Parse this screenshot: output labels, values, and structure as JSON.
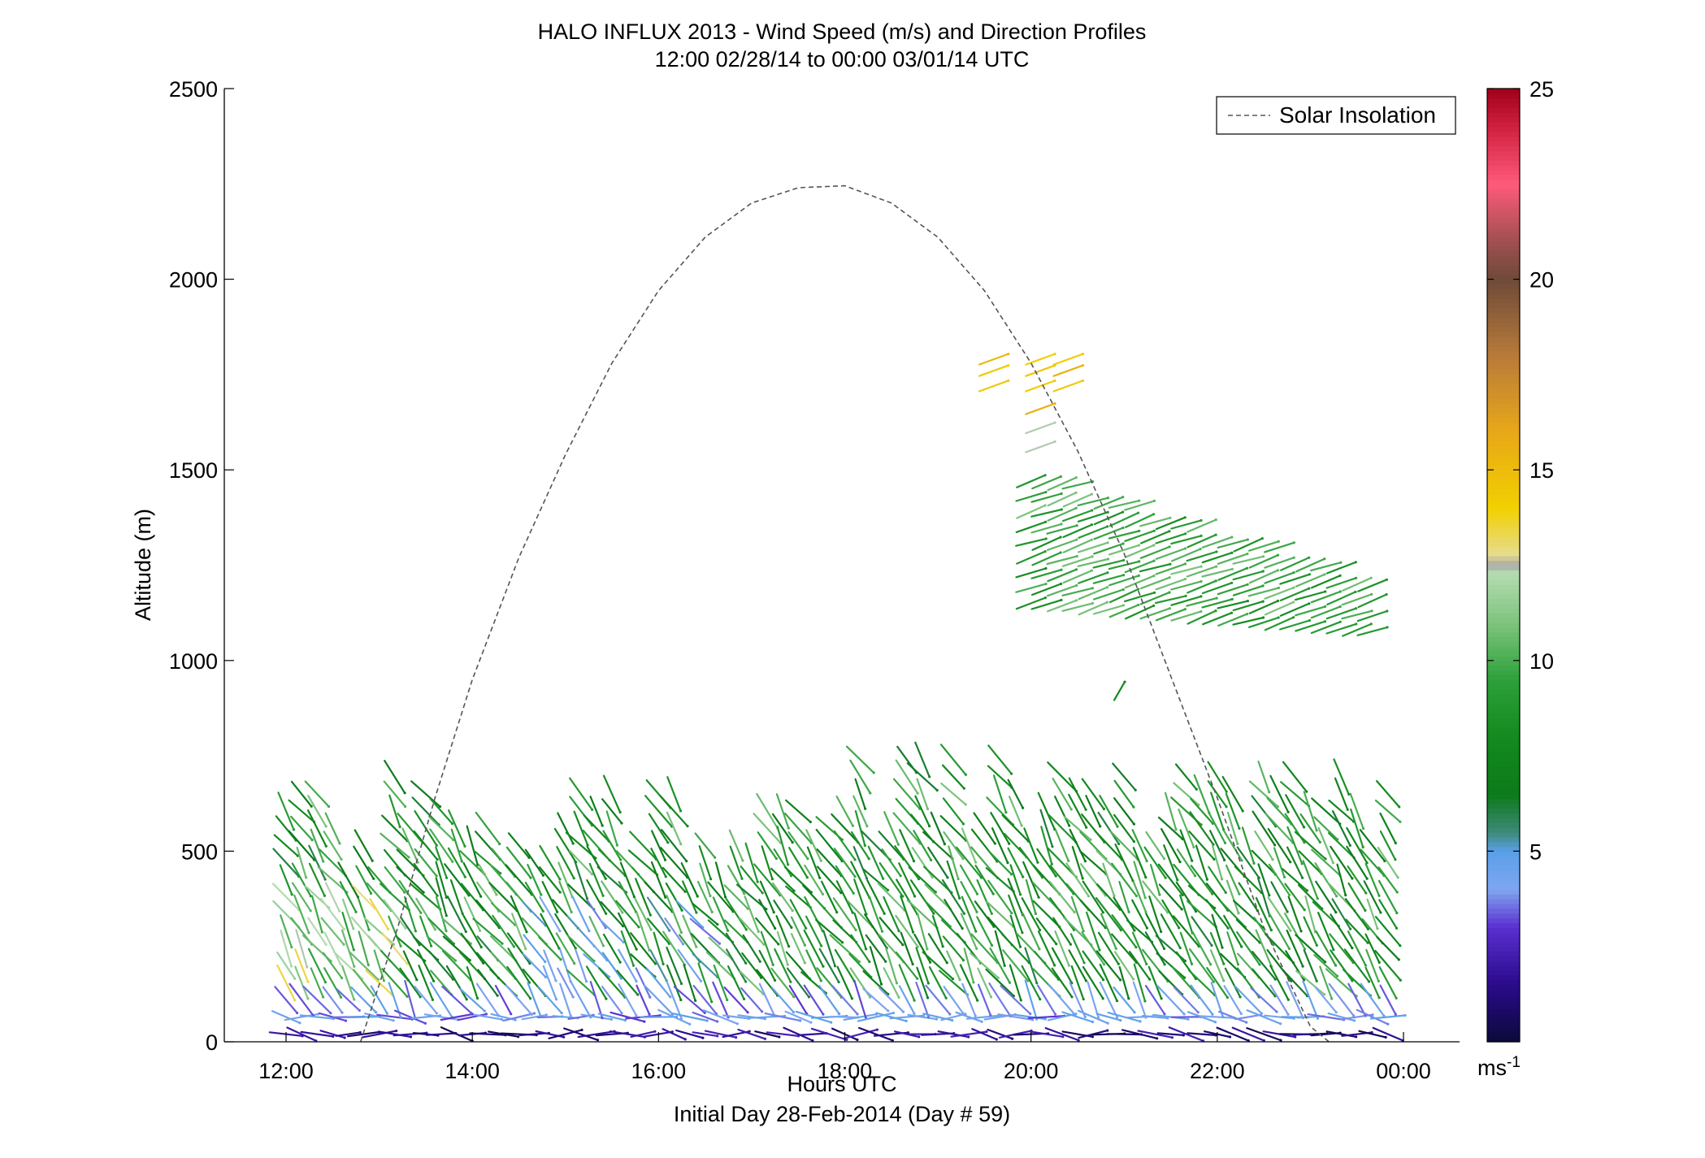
{
  "chart_data": {
    "type": "wind-profile",
    "title": "HALO INFLUX 2013 - Wind Speed (m/s) and Direction Profiles",
    "subtitle": "12:00 02/28/14 to 00:00 03/01/14  UTC",
    "xlabel": "Hours UTC",
    "xlabel2": "Initial Day 28-Feb-2014 (Day # 59)",
    "ylabel": "Altitude (m)",
    "xlim": [
      12,
      24
    ],
    "ylim": [
      0,
      2500
    ],
    "x_ticks": [
      12,
      14,
      16,
      18,
      20,
      22,
      24
    ],
    "x_tick_labels": [
      "12:00",
      "14:00",
      "16:00",
      "18:00",
      "20:00",
      "22:00",
      "00:00"
    ],
    "y_ticks": [
      0,
      500,
      1000,
      1500,
      2000,
      2500
    ],
    "y_tick_labels": [
      "0",
      "500",
      "1000",
      "1500",
      "2000",
      "2500"
    ],
    "legend": {
      "position": "top-right",
      "entries": [
        "Solar Insolation"
      ]
    },
    "colorbar": {
      "label": "ms-1",
      "unit_base": "ms",
      "unit_exp": "-1",
      "range": [
        0,
        25
      ],
      "ticks": [
        5,
        10,
        15,
        20,
        25
      ],
      "tick_labels": [
        "5",
        "10",
        "15",
        "20",
        "25"
      ],
      "stops": [
        [
          0,
          "#0a0a3a"
        ],
        [
          1.5,
          "#2a0a8a"
        ],
        [
          3,
          "#5a2fd0"
        ],
        [
          4,
          "#7fa6f0"
        ],
        [
          5,
          "#5aa0e8"
        ],
        [
          5.5,
          "#3d8a78"
        ],
        [
          6.5,
          "#0c7a1a"
        ],
        [
          8,
          "#138a1e"
        ],
        [
          9.5,
          "#2ea03a"
        ],
        [
          11,
          "#7ec47e"
        ],
        [
          12.3,
          "#b4dcb0"
        ],
        [
          12.5,
          "#a8a8a8"
        ],
        [
          12.8,
          "#e6dc8c"
        ],
        [
          14,
          "#f2d000"
        ],
        [
          16,
          "#e8a818"
        ],
        [
          18,
          "#b87a3a"
        ],
        [
          20,
          "#6e4a38"
        ],
        [
          21,
          "#a05050"
        ],
        [
          22.5,
          "#ff5a7a"
        ],
        [
          24,
          "#d02040"
        ],
        [
          25,
          "#a0001a"
        ]
      ]
    },
    "solar_insolation": {
      "name": "Solar Insolation",
      "x": [
        12.8,
        13.2,
        13.6,
        14.0,
        14.5,
        15.0,
        15.5,
        16.0,
        16.5,
        17.0,
        17.5,
        18.0,
        18.5,
        19.0,
        19.5,
        20.0,
        20.5,
        21.0,
        21.5,
        22.0,
        22.5,
        23.0,
        23.2
      ],
      "y": [
        0,
        300,
        640,
        950,
        1270,
        1540,
        1780,
        1970,
        2110,
        2200,
        2240,
        2245,
        2200,
        2110,
        1970,
        1780,
        1550,
        1280,
        960,
        640,
        300,
        40,
        0
      ]
    },
    "barb_speed_ranges": [
      {
        "from": 0,
        "to": 60,
        "speed": [
          0.5,
          2.5
        ]
      },
      {
        "from": 60,
        "to": 130,
        "speed": [
          3,
          5
        ]
      },
      {
        "from": 130,
        "to": 780,
        "speed": [
          6,
          11
        ]
      },
      {
        "from": 1100,
        "to": 1500,
        "speed": [
          8,
          11
        ]
      },
      {
        "from": 1550,
        "to": 1650,
        "speed": [
          11,
          12.6
        ]
      },
      {
        "from": 1650,
        "to": 1820,
        "speed": [
          14,
          16
        ]
      }
    ]
  }
}
